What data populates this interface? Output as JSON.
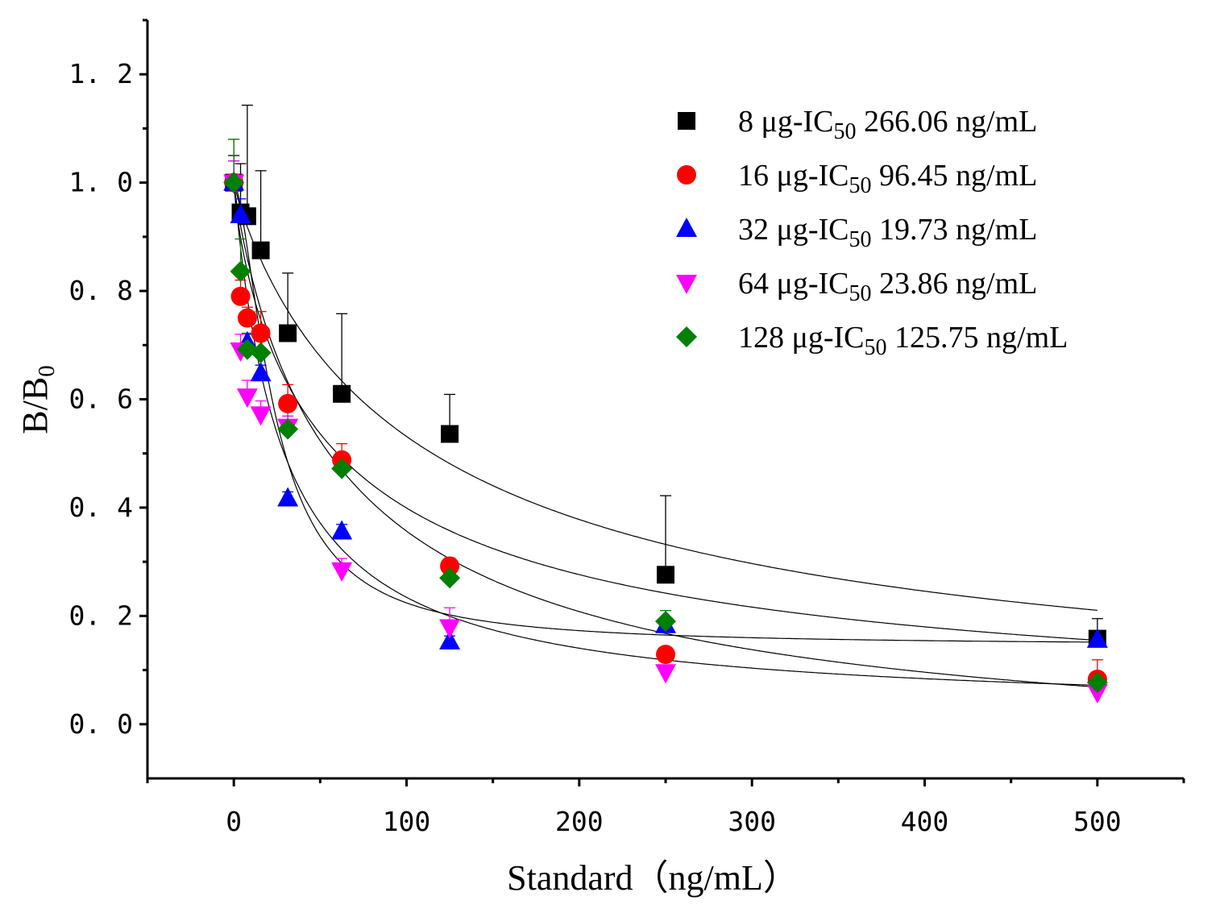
{
  "chart_data": {
    "type": "scatter",
    "xlabel": "Standard（ng/mL）",
    "ylabel": "B/B",
    "ylabel_sub": "0",
    "xlim": [
      -50,
      550
    ],
    "ylim": [
      -0.1,
      1.3
    ],
    "x_ticks": [
      0,
      100,
      200,
      300,
      400,
      500
    ],
    "x_tick_labels": [
      "0",
      "100",
      "200",
      "300",
      "400",
      "500"
    ],
    "y_ticks": [
      0.0,
      0.2,
      0.4,
      0.6,
      0.8,
      1.0,
      1.2
    ],
    "y_tick_labels": [
      "0. 0",
      "0. 2",
      "0. 4",
      "0. 6",
      "0. 8",
      "1. 0",
      "1. 2"
    ],
    "grid": false,
    "legend_position": "top-right",
    "series": [
      {
        "name": "8 μg-IC50 266.06 ng/mL",
        "legend_parts": [
          "8 μg-IC",
          "50",
          " 266.06 ng/mL"
        ],
        "marker": "square",
        "color": "#000000",
        "x": [
          0,
          3.9,
          7.8,
          15.6,
          31.25,
          62.5,
          125,
          250,
          500
        ],
        "y": [
          1.0,
          0.945,
          0.938,
          0.875,
          0.722,
          0.61,
          0.536,
          0.276,
          0.158
        ],
        "err": [
          0.05,
          0.09,
          0.205,
          0.147,
          0.111,
          0.148,
          0.073,
          0.146,
          0.037
        ],
        "fit": {
          "top": 1.0,
          "bottom": 0.0,
          "x0": 115,
          "p": 0.9
        }
      },
      {
        "name": "16 μg-IC50 96.45 ng/mL",
        "legend_parts": [
          "16 μg-IC",
          "50",
          " 96.45 ng/mL"
        ],
        "marker": "circle",
        "color": "#ff0000",
        "x": [
          0,
          3.9,
          7.8,
          15.6,
          31.25,
          62.5,
          125,
          250,
          500
        ],
        "y": [
          1.0,
          0.79,
          0.75,
          0.722,
          0.592,
          0.488,
          0.292,
          0.129,
          0.083
        ],
        "err": [
          0.08,
          0.03,
          0.02,
          0.04,
          0.035,
          0.03,
          0.015,
          0.012,
          0.036
        ],
        "fit": {
          "top": 1.0,
          "bottom": -0.08,
          "x0": 65,
          "p": 0.9
        }
      },
      {
        "name": "32 μg-IC50 19.73 ng/mL",
        "legend_parts": [
          "32 μg-IC",
          "50",
          " 19.73 ng/mL"
        ],
        "marker": "triangle-up",
        "color": "#0000ff",
        "x": [
          0,
          3.9,
          7.8,
          15.6,
          31.25,
          62.5,
          125,
          250,
          500
        ],
        "y": [
          1.0,
          0.94,
          0.705,
          0.648,
          0.417,
          0.356,
          0.153,
          0.183,
          0.156
        ],
        "err": [
          0.04,
          0.03,
          0.015,
          0.015,
          0.012,
          0.013,
          0.01,
          0.01,
          0.01
        ],
        "fit": {
          "top": 1.0,
          "bottom": 0.145,
          "x0": 24,
          "p": 1.6
        }
      },
      {
        "name": "64 μg-IC50 23.86 ng/mL",
        "legend_parts": [
          "64 μg-IC",
          "50",
          " 23.86 ng/mL"
        ],
        "marker": "triangle-down",
        "color": "#ff00ff",
        "x": [
          0,
          3.9,
          7.8,
          15.6,
          31.25,
          62.5,
          125,
          250,
          500
        ],
        "y": [
          1.0,
          0.69,
          0.605,
          0.572,
          0.549,
          0.284,
          0.179,
          0.096,
          0.059
        ],
        "err": [
          0.04,
          0.03,
          0.03,
          0.025,
          0.02,
          0.022,
          0.036,
          0.012,
          0.012
        ],
        "fit": {
          "top": 1.0,
          "bottom": 0.02,
          "x0": 28,
          "p": 1.0
        }
      },
      {
        "name": "128 μg-IC50 125.75 ng/mL",
        "legend_parts": [
          "128 μg-IC",
          "50",
          " 125.75 ng/mL"
        ],
        "marker": "diamond",
        "color": "#008000",
        "x": [
          0,
          3.9,
          7.8,
          15.6,
          31.25,
          62.5,
          125,
          250,
          500
        ],
        "y": [
          1.0,
          0.836,
          0.692,
          0.686,
          0.545,
          0.472,
          0.27,
          0.19,
          0.077
        ],
        "err": [
          0.08,
          0.06,
          0.03,
          0.025,
          0.04,
          0.015,
          0.03,
          0.02,
          0.01
        ],
        "fit": {
          "top": 1.0,
          "bottom": 0.0,
          "x0": 60,
          "p": 0.8
        }
      }
    ]
  }
}
